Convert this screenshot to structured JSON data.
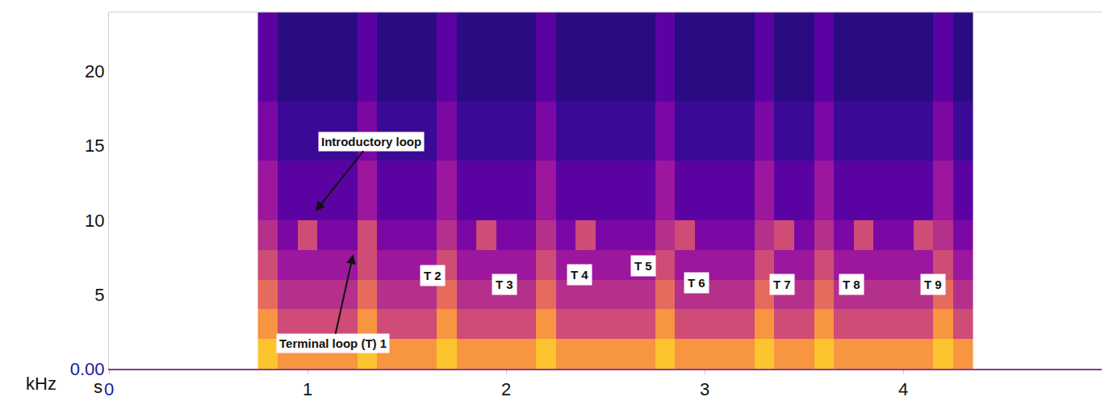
{
  "chart_data": {
    "type": "heatmap",
    "x_label": "s",
    "y_label": "kHz",
    "xlim": [
      0,
      5
    ],
    "xticks": [
      0,
      1,
      2,
      3,
      4
    ],
    "ylim": [
      0,
      24
    ],
    "yticks": [
      {
        "value": 0,
        "label": "0.00"
      },
      5,
      10,
      15,
      20
    ],
    "grid": false,
    "x": [
      0.8,
      0.9,
      1.0,
      1.1,
      1.2,
      1.3,
      1.4,
      1.5,
      1.6,
      1.7,
      1.8,
      1.9,
      2.0,
      2.1,
      2.2,
      2.3,
      2.4,
      2.5,
      2.6,
      2.7,
      2.8,
      2.9,
      3.0,
      3.1,
      3.2,
      3.3,
      3.4,
      3.5,
      3.6,
      3.7,
      3.8,
      3.9,
      4.0,
      4.1,
      4.2,
      4.3
    ],
    "y": [
      1,
      3,
      5,
      7,
      9,
      11,
      13,
      15,
      17,
      19,
      21,
      23
    ],
    "zlim": [
      0,
      10
    ],
    "z": [
      [
        10,
        9,
        9,
        9,
        9,
        10,
        9,
        9,
        9,
        10,
        9,
        9,
        9,
        9,
        10,
        9,
        9,
        9,
        9,
        9,
        10,
        9,
        9,
        9,
        9,
        10,
        9,
        9,
        10,
        9,
        9,
        9,
        9,
        9,
        10,
        9
      ],
      [
        9,
        7,
        7,
        7,
        7,
        9,
        7,
        7,
        7,
        9,
        7,
        7,
        7,
        7,
        9,
        7,
        7,
        7,
        7,
        7,
        9,
        7,
        7,
        7,
        7,
        9,
        7,
        7,
        9,
        7,
        7,
        7,
        7,
        7,
        9,
        7
      ],
      [
        8,
        6,
        6,
        6,
        6,
        8,
        6,
        6,
        6,
        8,
        6,
        6,
        6,
        6,
        8,
        6,
        6,
        6,
        6,
        6,
        8,
        6,
        6,
        6,
        6,
        8,
        6,
        6,
        8,
        6,
        6,
        6,
        6,
        6,
        8,
        6
      ],
      [
        7,
        5,
        5,
        5,
        5,
        7,
        5,
        5,
        5,
        7,
        5,
        5,
        5,
        5,
        7,
        5,
        5,
        5,
        5,
        5,
        7,
        5,
        5,
        5,
        5,
        7,
        5,
        5,
        7,
        5,
        5,
        5,
        5,
        5,
        7,
        5
      ],
      [
        6,
        4,
        7,
        4,
        4,
        7,
        4,
        4,
        4,
        6,
        4,
        7,
        4,
        4,
        6,
        4,
        7,
        4,
        4,
        4,
        6,
        7,
        4,
        4,
        4,
        6,
        7,
        4,
        6,
        4,
        7,
        4,
        4,
        7,
        6,
        4
      ],
      [
        5,
        3,
        3,
        3,
        3,
        5,
        3,
        3,
        3,
        5,
        3,
        3,
        3,
        3,
        5,
        3,
        3,
        3,
        3,
        3,
        5,
        3,
        3,
        3,
        3,
        5,
        3,
        3,
        5,
        3,
        3,
        3,
        3,
        3,
        5,
        3
      ],
      [
        5,
        3,
        3,
        3,
        3,
        5,
        3,
        3,
        3,
        5,
        3,
        3,
        3,
        3,
        5,
        3,
        3,
        3,
        3,
        3,
        5,
        3,
        3,
        3,
        3,
        5,
        3,
        3,
        5,
        3,
        3,
        3,
        3,
        3,
        5,
        3
      ],
      [
        4,
        2,
        2,
        2,
        2,
        4,
        2,
        2,
        2,
        4,
        2,
        2,
        2,
        2,
        4,
        2,
        2,
        2,
        2,
        2,
        4,
        2,
        2,
        2,
        2,
        4,
        2,
        2,
        4,
        2,
        2,
        2,
        2,
        2,
        4,
        2
      ],
      [
        4,
        2,
        2,
        2,
        2,
        4,
        2,
        2,
        2,
        4,
        2,
        2,
        2,
        2,
        4,
        2,
        2,
        2,
        2,
        2,
        4,
        2,
        2,
        2,
        2,
        4,
        2,
        2,
        4,
        2,
        2,
        2,
        2,
        2,
        4,
        2
      ],
      [
        3,
        1,
        1,
        1,
        1,
        3,
        1,
        1,
        1,
        3,
        1,
        1,
        1,
        1,
        3,
        1,
        1,
        1,
        1,
        1,
        3,
        1,
        1,
        1,
        1,
        3,
        1,
        1,
        3,
        1,
        1,
        1,
        1,
        1,
        3,
        1
      ],
      [
        3,
        1,
        1,
        1,
        1,
        3,
        1,
        1,
        1,
        3,
        1,
        1,
        1,
        1,
        3,
        1,
        1,
        1,
        1,
        1,
        3,
        1,
        1,
        1,
        1,
        3,
        1,
        1,
        3,
        1,
        1,
        1,
        1,
        1,
        3,
        1
      ],
      [
        3,
        1,
        1,
        1,
        1,
        3,
        1,
        1,
        1,
        3,
        1,
        1,
        1,
        1,
        3,
        1,
        1,
        1,
        1,
        1,
        3,
        1,
        1,
        1,
        1,
        3,
        1,
        1,
        3,
        1,
        1,
        1,
        1,
        1,
        3,
        1
      ]
    ],
    "annotations": [
      {
        "text": "Introductory loop",
        "x": 1.32,
        "y": 15.3,
        "arrow_to": [
          1.04,
          10.6
        ]
      },
      {
        "text": "Terminal loop (T) 1",
        "x": 1.13,
        "y": 1.7,
        "arrow_to": [
          1.23,
          7.7
        ]
      },
      {
        "text": "T 2",
        "x": 1.63,
        "y": 6.25
      },
      {
        "text": "T 3",
        "x": 1.99,
        "y": 5.7
      },
      {
        "text": "T 4",
        "x": 2.37,
        "y": 6.3
      },
      {
        "text": "T 5",
        "x": 2.69,
        "y": 6.9
      },
      {
        "text": "T 6",
        "x": 2.96,
        "y": 5.8
      },
      {
        "text": "T 7",
        "x": 3.39,
        "y": 5.7
      },
      {
        "text": "T 8",
        "x": 3.74,
        "y": 5.7
      },
      {
        "text": "T 9",
        "x": 4.15,
        "y": 5.7
      }
    ]
  }
}
